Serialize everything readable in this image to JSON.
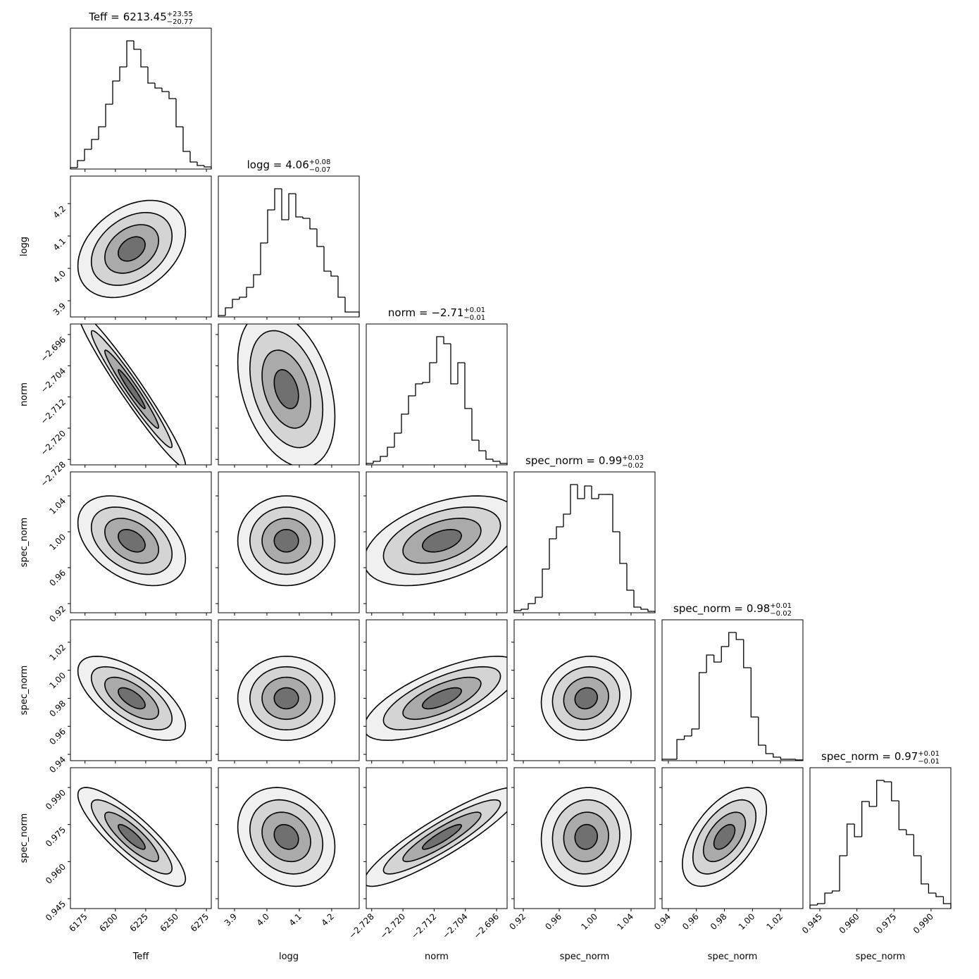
{
  "chart_data": {
    "type": "corner",
    "parameters": [
      {
        "label": "Teff",
        "title_prefix": "Teff =",
        "median": 6213.45,
        "err_plus": {
          "value": 23.55,
          "label": "+23.55"
        },
        "err_minus": {
          "value": 20.77,
          "label": "−20.77"
        },
        "lim": [
          6163,
          6279
        ],
        "ticks": [
          6175,
          6200,
          6225,
          6250,
          6275
        ],
        "counts": [
          2,
          12,
          28,
          42,
          60,
          92,
          125,
          145,
          182,
          170,
          145,
          122,
          115,
          110,
          100,
          60,
          25,
          10,
          5,
          3
        ]
      },
      {
        "label": "logg",
        "title_prefix": "logg =",
        "median": 4.06,
        "err_plus": {
          "value": 0.08,
          "label": "+0.08"
        },
        "err_minus": {
          "value": 0.07,
          "label": "−0.07"
        },
        "lim": [
          3.85,
          4.285
        ],
        "ticks": [
          3.9,
          {
            "value": 4,
            "label": "4.0"
          },
          4.1,
          4.2
        ],
        "counts": [
          2,
          13,
          25,
          28,
          42,
          60,
          105,
          152,
          182,
          138,
          175,
          142,
          140,
          125,
          100,
          65,
          58,
          28,
          7,
          7
        ]
      },
      {
        "label": "norm",
        "title_prefix": "norm =",
        "median": {
          "value": -2.71,
          "label": "−2.71"
        },
        "err_plus": {
          "value": 0.01,
          "label": "+0.01"
        },
        "err_minus": {
          "value": 0.01,
          "label": "−0.01"
        },
        "lim": [
          -2.7294,
          -2.6933
        ],
        "ticks": [
          {
            "value": -2.728,
            "label": "−2.728"
          },
          {
            "value": -2.72,
            "label": "−2.720"
          },
          {
            "value": -2.712,
            "label": "−2.712"
          },
          {
            "value": -2.704,
            "label": "−2.704"
          },
          {
            "value": -2.696,
            "label": "−2.696"
          }
        ],
        "counts": [
          2,
          5,
          12,
          25,
          45,
          72,
          98,
          115,
          117,
          145,
          182,
          172,
          115,
          145,
          80,
          35,
          20,
          8,
          5,
          2
        ]
      },
      {
        "label": "spec_norm",
        "title_prefix": "spec_norm =",
        "median": 0.99,
        "err_plus": {
          "value": 0.03,
          "label": "+0.03"
        },
        "err_minus": {
          "value": 0.02,
          "label": "−0.02"
        },
        "lim": [
          0.9098,
          1.0667
        ],
        "ticks": [
          0.92,
          0.96,
          {
            "value": 1,
            "label": "1.00"
          },
          1.04
        ],
        "counts": [
          3,
          5,
          13,
          22,
          62,
          105,
          122,
          140,
          182,
          162,
          180,
          162,
          168,
          168,
          115,
          70,
          32,
          8,
          5,
          2
        ]
      },
      {
        "label": "spec_norm",
        "title_prefix": "spec_norm =",
        "median": 0.98,
        "err_plus": {
          "value": 0.01,
          "label": "+0.01"
        },
        "err_minus": {
          "value": 0.02,
          "label": "−0.02"
        },
        "lim": [
          0.9355,
          1.036
        ],
        "ticks": [
          0.94,
          0.96,
          0.98,
          {
            "value": 1,
            "label": "1.00"
          },
          1.02
        ],
        "counts": [
          2,
          2,
          30,
          35,
          45,
          125,
          150,
          140,
          162,
          182,
          172,
          132,
          62,
          22,
          10,
          5,
          2,
          2,
          1
        ]
      },
      {
        "label": "spec_norm",
        "title_prefix": "spec_norm =",
        "median": 0.97,
        "err_plus": {
          "value": 0.01,
          "label": "+0.01"
        },
        "err_minus": {
          "value": 0.01,
          "label": "−0.01"
        },
        "lim": [
          0.941,
          0.998
        ],
        "ticks": [
          0.945,
          {
            "value": 0.96,
            "label": "0.960"
          },
          0.975,
          {
            "value": 0.99,
            "label": "0.990"
          }
        ],
        "counts": [
          5,
          7,
          22,
          25,
          75,
          120,
          102,
          152,
          145,
          182,
          180,
          153,
          112,
          105,
          75,
          35,
          22,
          17,
          7
        ]
      }
    ],
    "correlations": [
      [],
      [
        0.35
      ],
      [
        -0.97,
        -0.35
      ],
      [
        -0.4,
        0,
        0.45
      ],
      [
        -0.65,
        0,
        0.7,
        0.1
      ],
      [
        -0.85,
        -0.2,
        0.9,
        0.05,
        0.55
      ]
    ],
    "color": "#000000"
  }
}
